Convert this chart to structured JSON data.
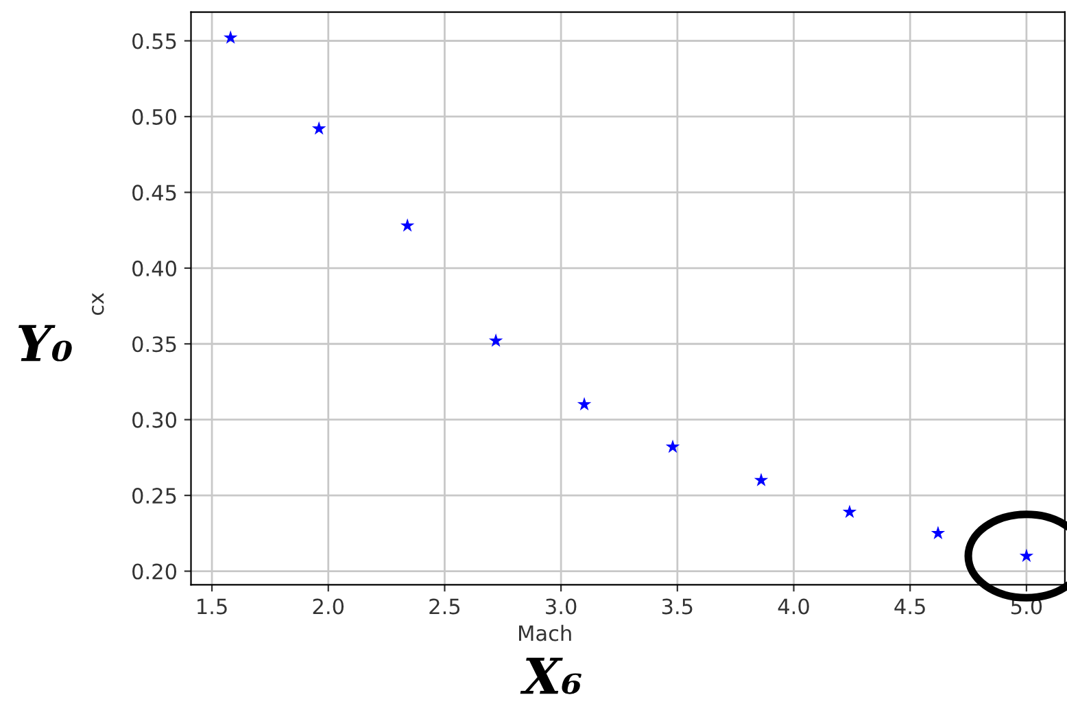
{
  "chart_data": {
    "type": "scatter",
    "xlabel": "Mach",
    "ylabel": "cx",
    "annotations": [
      "X₆",
      "Y₀"
    ],
    "x": [
      1.58,
      1.96,
      2.34,
      2.72,
      3.1,
      3.48,
      3.86,
      4.24,
      4.62,
      5.0
    ],
    "series": [
      {
        "color": "#0000ff",
        "values": [
          0.552,
          0.492,
          0.428,
          0.352,
          0.31,
          0.282,
          0.26,
          0.239,
          0.225,
          0.21
        ]
      }
    ],
    "marker": "star",
    "grid": true,
    "xlim": [
      1.41,
      5.165
    ],
    "ylim": [
      0.191,
      0.569
    ],
    "xticks": [
      {
        "value": 1.5,
        "label": "1.5"
      },
      {
        "value": 2.0,
        "label": "2.0"
      },
      {
        "value": 2.5,
        "label": "2.5"
      },
      {
        "value": 3.0,
        "label": "3.0"
      },
      {
        "value": 3.5,
        "label": "3.5"
      },
      {
        "value": 4.0,
        "label": "4.0"
      },
      {
        "value": 4.5,
        "label": "4.5"
      },
      {
        "value": 5.0,
        "label": "5.0"
      }
    ],
    "yticks": [
      {
        "value": 0.2,
        "label": "0.20"
      },
      {
        "value": 0.25,
        "label": "0.25"
      },
      {
        "value": 0.3,
        "label": "0.30"
      },
      {
        "value": 0.35,
        "label": "0.35"
      },
      {
        "value": 0.4,
        "label": "0.40"
      },
      {
        "value": 0.45,
        "label": "0.45"
      },
      {
        "value": 0.5,
        "label": "0.50"
      },
      {
        "value": 0.55,
        "label": "0.55"
      }
    ]
  }
}
